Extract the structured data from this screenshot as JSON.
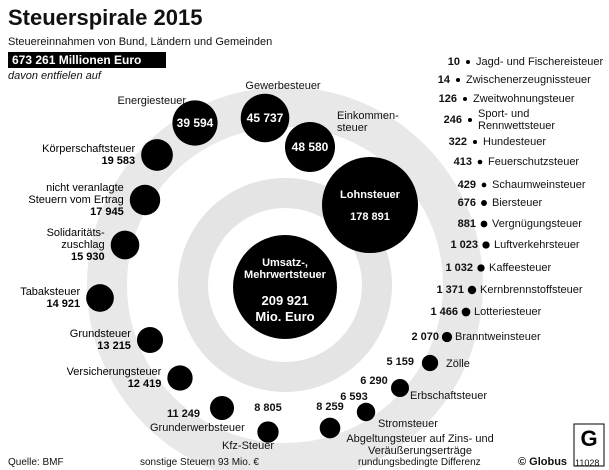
{
  "chart_data": {
    "type": "bubble",
    "title": "Steuerspirale 2015",
    "subtitle": "Steuereinnahmen von Bund, Ländern und Gemeinden",
    "total": 673261,
    "total_label": "673 261 Millionen Euro",
    "note": "davon entfielen auf",
    "center_unit": "Mio. Euro",
    "color": "#000000",
    "categories": [
      "Lohnsteuer",
      "Umsatz-,\nMehrwertsteuer",
      "Einkommen-\nsteuer",
      "Gewerbesteuer",
      "Energiesteuer",
      "Körperschaftsteuer",
      "nicht veranlagte\nSteuern vom Ertrag",
      "Solidaritäts-\nzuschlag",
      "Tabaksteuer",
      "Grundsteuer",
      "Versicherungsteuer",
      "Grunderwerbsteuer",
      "Kfz-Steuer",
      "Abgeltungsteuer auf Zins- und Veräußerungserträge",
      "Stromsteuer",
      "Erbschaftsteuer",
      "Zölle",
      "Branntweinsteuer",
      "Lotteriesteuer",
      "Kernbrennstoffsteuer",
      "Kaffeesteuer",
      "Luftverkehrsteuer",
      "Vergnügungsteuer",
      "Biersteuer",
      "Schaumweinsteuer",
      "Feuerschutzsteuer",
      "Hundesteuer",
      "Sport- und\nRennwettsteuer",
      "Zweitwohnungsteuer",
      "Zwischenerzeugnissteuer",
      "Jagd- und Fischereisteuer"
    ],
    "values": [
      178891,
      209921,
      48580,
      45737,
      39594,
      19583,
      17945,
      15930,
      14921,
      13215,
      12419,
      11249,
      8805,
      8259,
      6593,
      6290,
      5159,
      2070,
      1466,
      1371,
      1032,
      1023,
      881,
      676,
      429,
      413,
      322,
      246,
      126,
      14,
      10
    ],
    "value_labels": [
      "178 891",
      "209 921",
      "48 580",
      "45 737",
      "39 594",
      "19 583",
      "17 945",
      "15 930",
      "14 921",
      "13 215",
      "12 419",
      "11 249",
      "8 805",
      "8 259",
      "6 593",
      "6 290",
      "5 159",
      "2 070",
      "1 466",
      "1 371",
      "1 032",
      "1 023",
      "881",
      "676",
      "429",
      "413",
      "322",
      "246",
      "126",
      "14",
      "10"
    ],
    "source": "Quelle: BMF",
    "other_note": "sonstige Steuern 93 Mio. €",
    "rounding_note": "rundungsbedingte Differenz",
    "publisher": "© Globus",
    "chart_id": "11028"
  }
}
